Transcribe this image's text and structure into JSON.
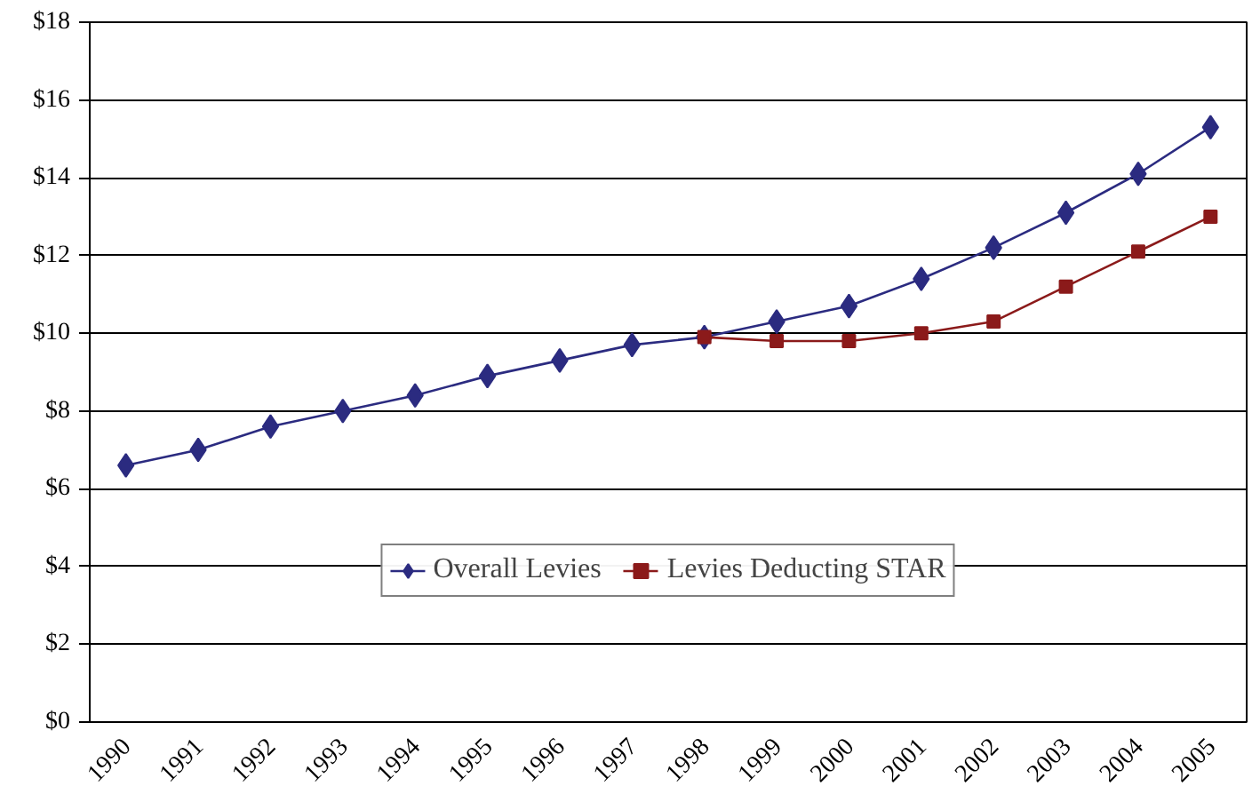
{
  "chart_data": {
    "type": "line",
    "categories": [
      "1990",
      "1991",
      "1992",
      "1993",
      "1994",
      "1995",
      "1996",
      "1997",
      "1998",
      "1999",
      "2000",
      "2001",
      "2002",
      "2003",
      "2004",
      "2005"
    ],
    "series": [
      {
        "name": "Overall Levies",
        "color": "#2b2b80",
        "marker": "diamond",
        "values": [
          6.6,
          7.0,
          7.6,
          8.0,
          8.4,
          8.9,
          9.3,
          9.7,
          9.9,
          10.3,
          10.7,
          11.4,
          12.2,
          13.1,
          14.1,
          15.3
        ]
      },
      {
        "name": "Levies Deducting STAR",
        "color": "#8b1a1a",
        "marker": "square",
        "values": [
          null,
          null,
          null,
          null,
          null,
          null,
          null,
          null,
          9.9,
          9.8,
          9.8,
          10.0,
          10.3,
          11.2,
          12.1,
          13.0
        ]
      }
    ],
    "ylim": [
      0,
      18
    ],
    "yticks": [
      {
        "value": 0,
        "label": "$0"
      },
      {
        "value": 2,
        "label": "$2"
      },
      {
        "value": 4,
        "label": "$4"
      },
      {
        "value": 6,
        "label": "$6"
      },
      {
        "value": 8,
        "label": "$8"
      },
      {
        "value": 10,
        "label": "$10"
      },
      {
        "value": 12,
        "label": "$12"
      },
      {
        "value": 14,
        "label": "$14"
      },
      {
        "value": 16,
        "label": "$16"
      },
      {
        "value": 18,
        "label": "$18"
      }
    ],
    "grid": "y",
    "legend": "bottom",
    "line_style": "solid"
  }
}
